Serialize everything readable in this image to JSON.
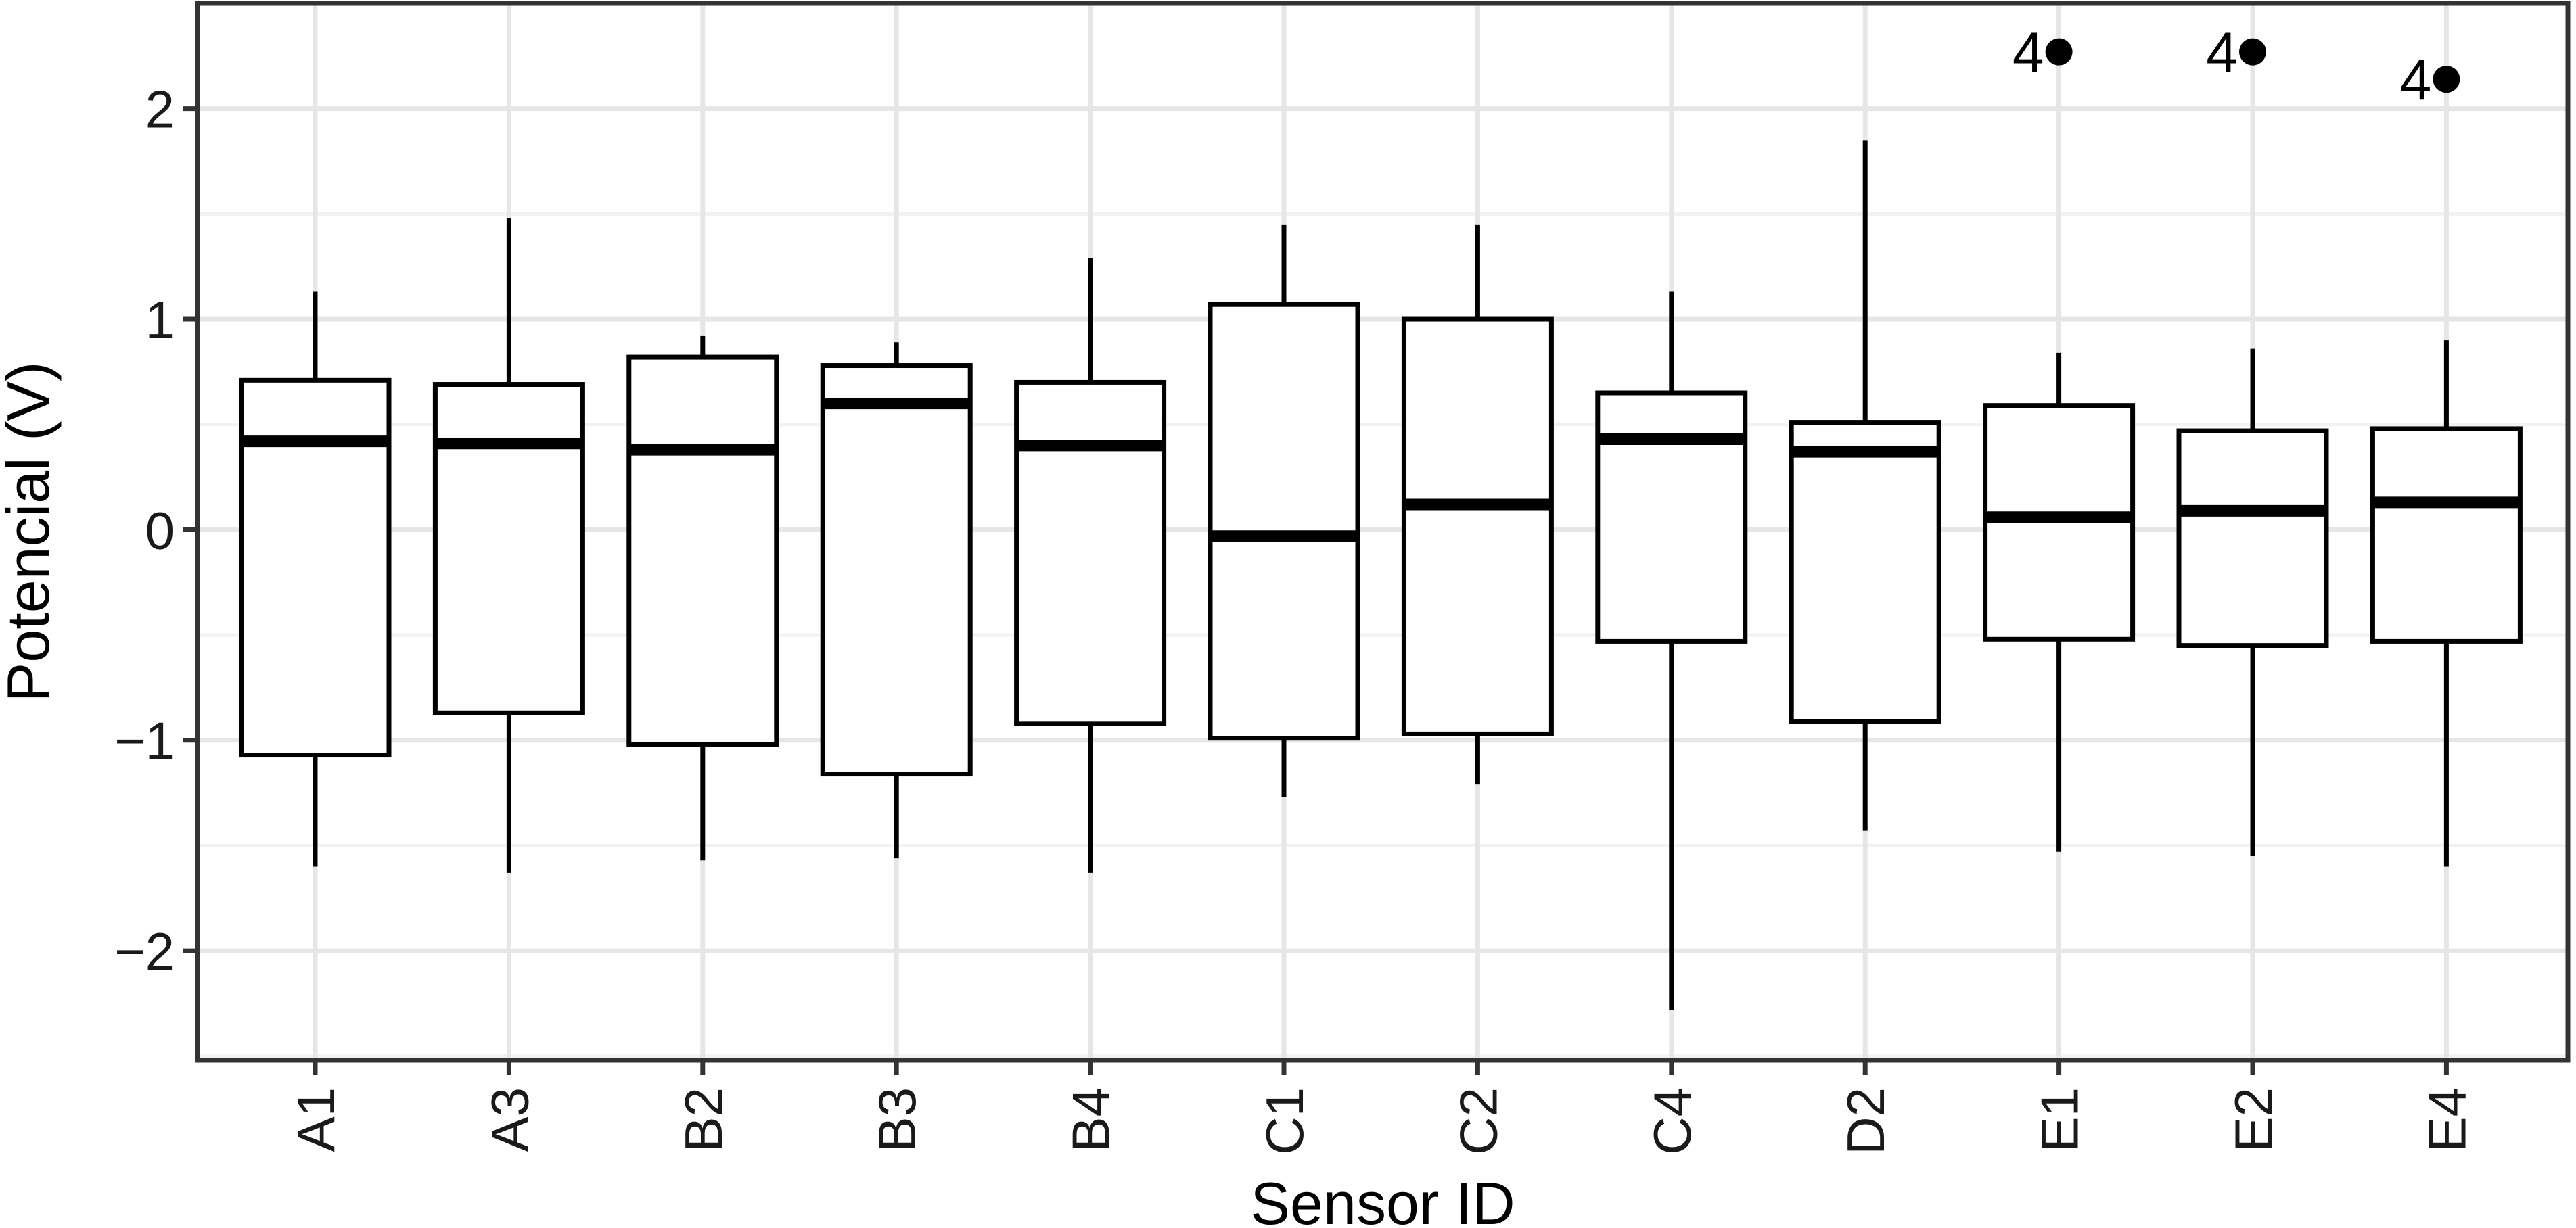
{
  "chart_data": {
    "type": "boxplot",
    "title": "",
    "xlabel": "Sensor ID",
    "ylabel": "Potencial (V)",
    "ylim": [
      -2.52,
      2.5
    ],
    "yticks": [
      -2,
      -1,
      0,
      1,
      2
    ],
    "ytick_labels": [
      "−2",
      "−1",
      "0",
      "1",
      "2"
    ],
    "grid": true,
    "legend": "none",
    "categories": [
      "A1",
      "A3",
      "B2",
      "B3",
      "B4",
      "C1",
      "C2",
      "C4",
      "D2",
      "E1",
      "E2",
      "E4"
    ],
    "boxes": [
      {
        "label": "A1",
        "whisker_low": -1.6,
        "q1": -1.07,
        "median": 0.42,
        "q3": 0.71,
        "whisker_high": 1.13,
        "outliers": []
      },
      {
        "label": "A3",
        "whisker_low": -1.63,
        "q1": -0.87,
        "median": 0.41,
        "q3": 0.69,
        "whisker_high": 1.48,
        "outliers": []
      },
      {
        "label": "B2",
        "whisker_low": -1.57,
        "q1": -1.02,
        "median": 0.38,
        "q3": 0.82,
        "whisker_high": 0.92,
        "outliers": []
      },
      {
        "label": "B3",
        "whisker_low": -1.56,
        "q1": -1.16,
        "median": 0.6,
        "q3": 0.78,
        "whisker_high": 0.89,
        "outliers": []
      },
      {
        "label": "B4",
        "whisker_low": -1.63,
        "q1": -0.92,
        "median": 0.4,
        "q3": 0.7,
        "whisker_high": 1.29,
        "outliers": []
      },
      {
        "label": "C1",
        "whisker_low": -1.27,
        "q1": -0.99,
        "median": -0.03,
        "q3": 1.07,
        "whisker_high": 1.45,
        "outliers": []
      },
      {
        "label": "C2",
        "whisker_low": -1.21,
        "q1": -0.97,
        "median": 0.12,
        "q3": 1.0,
        "whisker_high": 1.45,
        "outliers": []
      },
      {
        "label": "C4",
        "whisker_low": -2.28,
        "q1": -0.53,
        "median": 0.43,
        "q3": 0.65,
        "whisker_high": 1.13,
        "outliers": []
      },
      {
        "label": "D2",
        "whisker_low": -1.43,
        "q1": -0.91,
        "median": 0.37,
        "q3": 0.51,
        "whisker_high": 1.85,
        "outliers": []
      },
      {
        "label": "E1",
        "whisker_low": -1.53,
        "q1": -0.52,
        "median": 0.06,
        "q3": 0.59,
        "whisker_high": 0.84,
        "outliers": [
          {
            "y": 2.27,
            "label": "4"
          }
        ]
      },
      {
        "label": "E2",
        "whisker_low": -1.55,
        "q1": -0.55,
        "median": 0.09,
        "q3": 0.47,
        "whisker_high": 0.86,
        "outliers": [
          {
            "y": 2.27,
            "label": "4"
          }
        ]
      },
      {
        "label": "E4",
        "whisker_low": -1.6,
        "q1": -0.53,
        "median": 0.13,
        "q3": 0.48,
        "whisker_high": 0.9,
        "outliers": [
          {
            "y": 2.14,
            "label": "4"
          }
        ]
      }
    ],
    "colors": {
      "box_fill": "#ffffff",
      "box_stroke": "#000000",
      "grid_major": "#e6e6e6",
      "grid_minor": "#f2f2f2",
      "panel_border": "#333333",
      "tick_text": "#1a1a1a"
    }
  }
}
